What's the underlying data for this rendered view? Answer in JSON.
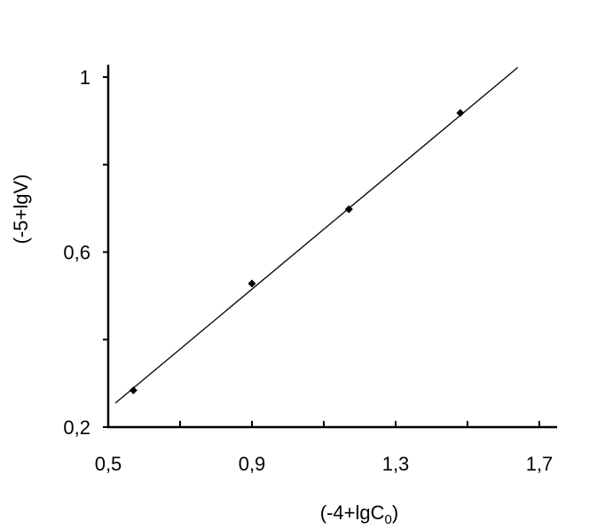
{
  "chart_data": {
    "type": "scatter",
    "xlabel": "(-4+lgC",
    "xlabel_subscript": "0",
    "xlabel_suffix": ")",
    "ylabel": "(-5+lgV)",
    "xlim": [
      0.5,
      1.7
    ],
    "ylim": [
      0.2,
      1.0
    ],
    "x_ticks": [
      0.5,
      0.7,
      0.9,
      1.1,
      1.3,
      1.5,
      1.7
    ],
    "x_tick_labels": [
      "0,5",
      "",
      "0,9",
      "",
      "1,3",
      "",
      "1,7"
    ],
    "y_ticks": [
      0.2,
      0.4,
      0.6,
      0.8,
      1.0
    ],
    "y_tick_labels": [
      "0,2",
      "",
      "0,6",
      "",
      "1"
    ],
    "series": [
      {
        "x": [
          0.57,
          0.9,
          1.17,
          1.48
        ],
        "y": [
          0.284,
          0.528,
          0.698,
          0.918
        ],
        "marker": "diamond",
        "color": "#000000"
      }
    ],
    "fit_line": {
      "x": [
        0.52,
        1.64
      ],
      "y": [
        0.255,
        1.022
      ],
      "color": "#000000"
    },
    "grid": false,
    "legend": "none"
  }
}
